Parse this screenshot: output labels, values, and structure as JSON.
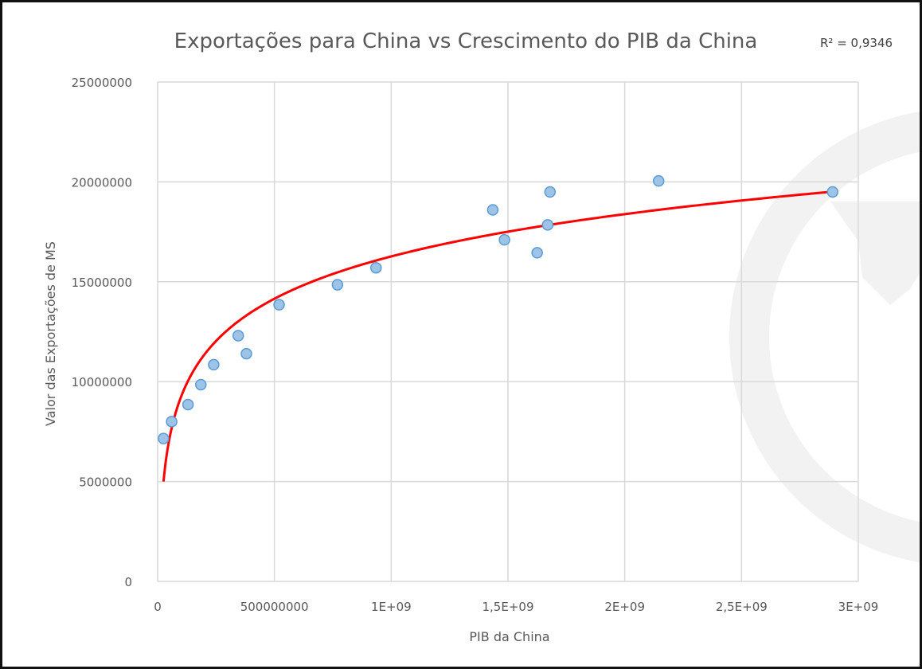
{
  "chart_data": {
    "type": "scatter",
    "title": "Exportações para China vs Crescimento do PIB da China",
    "xlabel": "PIB da China",
    "ylabel": "Valor das Exportações de MS",
    "xlim": [
      0,
      3000000000
    ],
    "ylim": [
      0,
      25000000
    ],
    "x_ticks": [
      0,
      500000000,
      1000000000,
      1500000000,
      2000000000,
      2500000000,
      3000000000
    ],
    "x_tick_labels": [
      "0",
      "500000000",
      "1E+09",
      "1,5E+09",
      "2E+09",
      "2,5E+09",
      "3E+09"
    ],
    "y_ticks": [
      0,
      5000000,
      10000000,
      15000000,
      20000000,
      25000000
    ],
    "y_tick_labels": [
      "0",
      "5000000",
      "10000000",
      "15000000",
      "20000000",
      "25000000"
    ],
    "grid": true,
    "legend": "none",
    "series": [
      {
        "marker_color": "#9dc3e6",
        "marker_edge": "#5b9bd5",
        "points": [
          {
            "x": 25000000,
            "y": 7150000
          },
          {
            "x": 60000000,
            "y": 8000000
          },
          {
            "x": 130000000,
            "y": 8850000
          },
          {
            "x": 185000000,
            "y": 9850000
          },
          {
            "x": 240000000,
            "y": 10850000
          },
          {
            "x": 345000000,
            "y": 12300000
          },
          {
            "x": 380000000,
            "y": 11400000
          },
          {
            "x": 520000000,
            "y": 13850000
          },
          {
            "x": 770000000,
            "y": 14850000
          },
          {
            "x": 935000000,
            "y": 15700000
          },
          {
            "x": 1435000000,
            "y": 18600000
          },
          {
            "x": 1485000000,
            "y": 17100000
          },
          {
            "x": 1625000000,
            "y": 16450000
          },
          {
            "x": 1670000000,
            "y": 17850000
          },
          {
            "x": 1680000000,
            "y": 19500000
          },
          {
            "x": 2145000000,
            "y": 20050000
          },
          {
            "x": 2890000000,
            "y": 19500000
          }
        ]
      }
    ],
    "trendline": {
      "kind": "logarithmic",
      "color": "#ff0000",
      "x_start": 25000000,
      "x_end": 2880000000,
      "anchor_points": [
        {
          "x": 25000000,
          "y": 5000000
        },
        {
          "x": 2880000000,
          "y": 19500000
        }
      ],
      "r2_label": "R² = 0,9346"
    }
  },
  "watermark": {
    "color": "#f2f2f2"
  }
}
